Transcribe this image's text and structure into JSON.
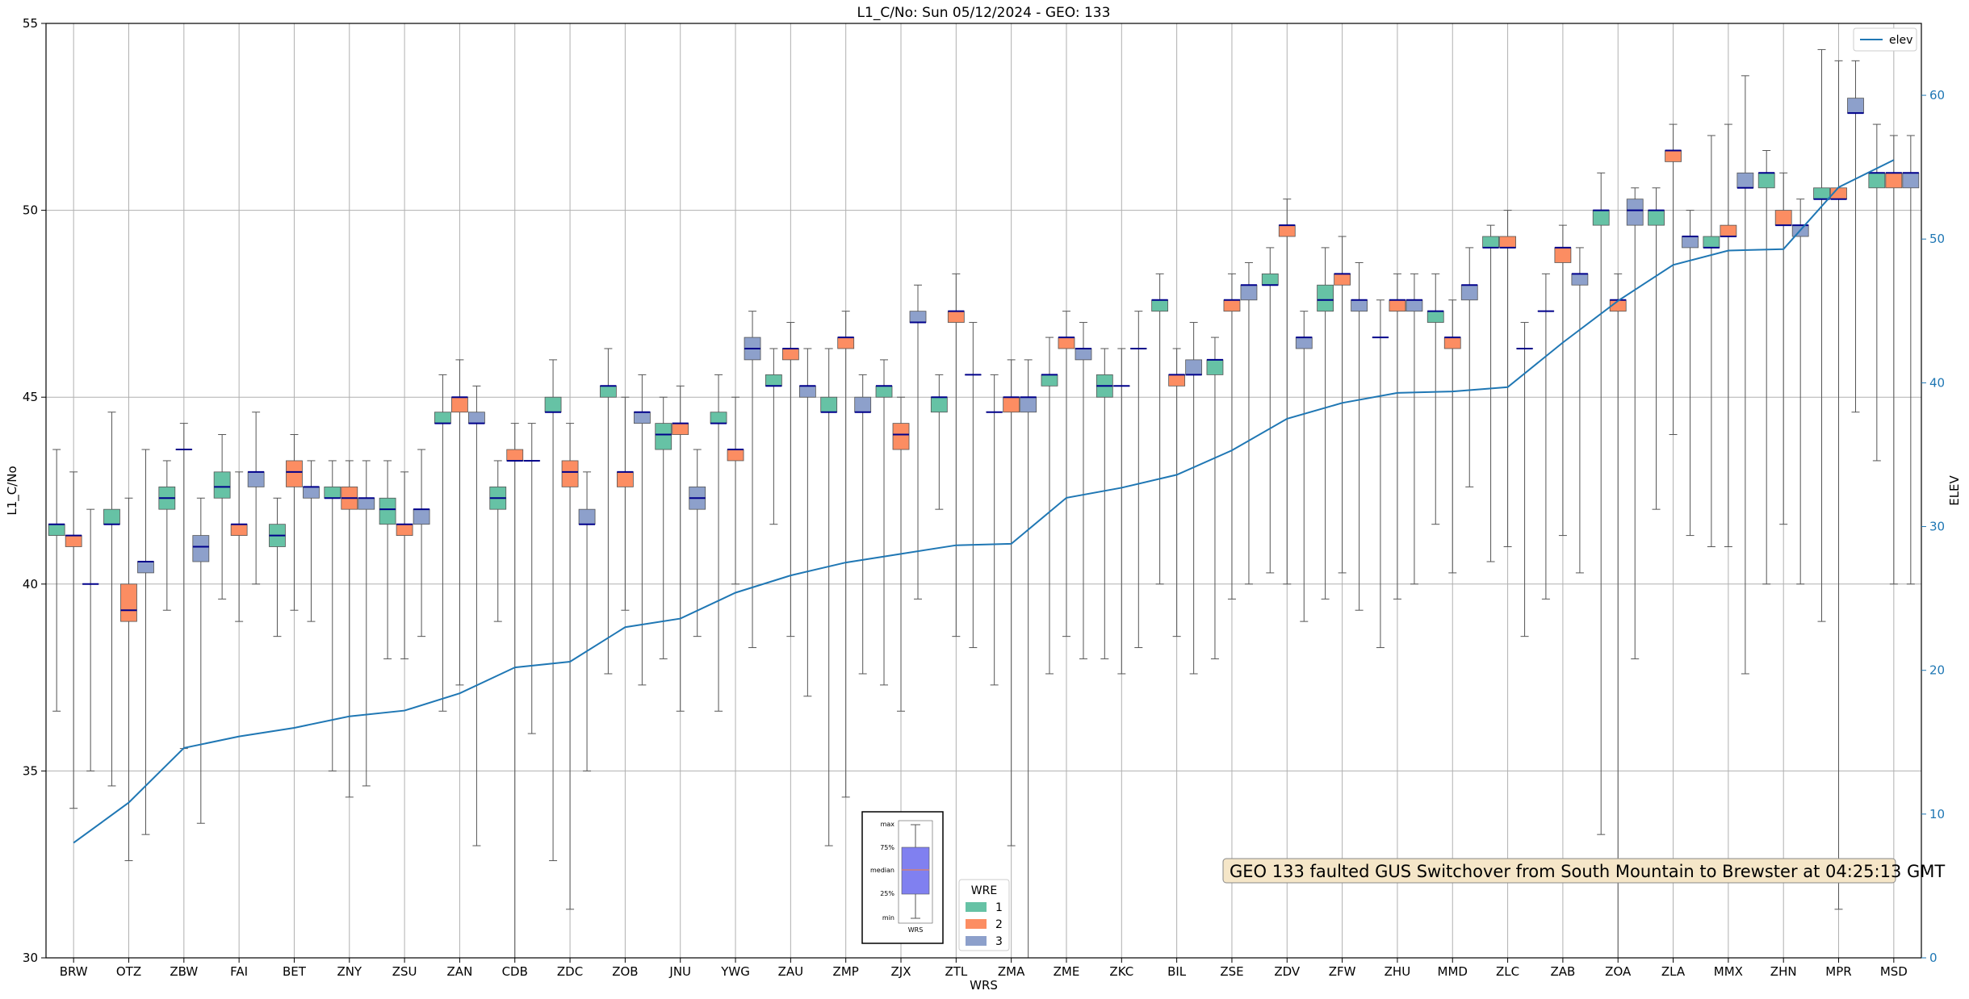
{
  "chart_data": {
    "type": "box",
    "title": "L1_C/No: Sun 05/12/2024 - GEO: 133",
    "xlabel": "WRS",
    "ylabel": "L1_C/No",
    "y2label": "ELEV",
    "ylim": [
      30,
      55
    ],
    "y2lim": [
      0,
      65
    ],
    "yticks": [
      30,
      35,
      40,
      45,
      50,
      55
    ],
    "y2ticks": [
      0,
      10,
      20,
      30,
      40,
      50,
      60
    ],
    "grid": true,
    "categories": [
      "BRW",
      "OTZ",
      "ZBW",
      "FAI",
      "BET",
      "ZNY",
      "ZSU",
      "ZAN",
      "CDB",
      "ZDC",
      "ZOB",
      "JNU",
      "YWG",
      "ZAU",
      "ZMP",
      "ZJX",
      "ZTL",
      "ZMA",
      "ZME",
      "ZKC",
      "BIL",
      "ZSE",
      "ZDV",
      "ZFW",
      "ZHU",
      "MMD",
      "ZLC",
      "ZAB",
      "ZOA",
      "ZLA",
      "MMX",
      "ZHN",
      "MPR",
      "MSD"
    ],
    "wre_colors": {
      "1": "#66c2a5",
      "2": "#fc8d62",
      "3": "#8da0cb"
    },
    "median_color": "#00008b",
    "boxes": [
      {
        "cat": "BRW",
        "wre": 1,
        "min": 36.6,
        "q1": 41.3,
        "med": 41.6,
        "q3": 41.6,
        "max": 43.6
      },
      {
        "cat": "BRW",
        "wre": 2,
        "min": 34.0,
        "q1": 41.0,
        "med": 41.3,
        "q3": 41.3,
        "max": 43.0
      },
      {
        "cat": "BRW",
        "wre": 3,
        "min": 35.0,
        "q1": 40.0,
        "med": 40.0,
        "q3": 40.0,
        "max": 42.0
      },
      {
        "cat": "OTZ",
        "wre": 1,
        "min": 34.6,
        "q1": 41.6,
        "med": 41.6,
        "q3": 42.0,
        "max": 44.6
      },
      {
        "cat": "OTZ",
        "wre": 2,
        "min": 32.6,
        "q1": 39.0,
        "med": 39.3,
        "q3": 40.0,
        "max": 42.3
      },
      {
        "cat": "OTZ",
        "wre": 3,
        "min": 33.3,
        "q1": 40.3,
        "med": 40.6,
        "q3": 40.6,
        "max": 43.6
      },
      {
        "cat": "ZBW",
        "wre": 1,
        "min": 39.3,
        "q1": 42.0,
        "med": 42.3,
        "q3": 42.6,
        "max": 43.3
      },
      {
        "cat": "ZBW",
        "wre": 2,
        "min": 35.6,
        "q1": 43.6,
        "med": 43.6,
        "q3": 43.6,
        "max": 44.3
      },
      {
        "cat": "ZBW",
        "wre": 3,
        "min": 33.6,
        "q1": 40.6,
        "med": 41.0,
        "q3": 41.3,
        "max": 42.3
      },
      {
        "cat": "FAI",
        "wre": 1,
        "min": 39.6,
        "q1": 42.3,
        "med": 42.6,
        "q3": 43.0,
        "max": 44.0
      },
      {
        "cat": "FAI",
        "wre": 2,
        "min": 39.0,
        "q1": 41.3,
        "med": 41.6,
        "q3": 41.6,
        "max": 43.0
      },
      {
        "cat": "FAI",
        "wre": 3,
        "min": 40.0,
        "q1": 42.6,
        "med": 43.0,
        "q3": 43.0,
        "max": 44.6
      },
      {
        "cat": "BET",
        "wre": 1,
        "min": 38.6,
        "q1": 41.0,
        "med": 41.3,
        "q3": 41.6,
        "max": 42.3
      },
      {
        "cat": "BET",
        "wre": 2,
        "min": 39.3,
        "q1": 42.6,
        "med": 43.0,
        "q3": 43.3,
        "max": 44.0
      },
      {
        "cat": "BET",
        "wre": 3,
        "min": 39.0,
        "q1": 42.3,
        "med": 42.6,
        "q3": 42.6,
        "max": 43.3
      },
      {
        "cat": "ZNY",
        "wre": 1,
        "min": 35.0,
        "q1": 42.3,
        "med": 42.3,
        "q3": 42.6,
        "max": 43.3
      },
      {
        "cat": "ZNY",
        "wre": 2,
        "min": 34.3,
        "q1": 42.0,
        "med": 42.3,
        "q3": 42.6,
        "max": 43.3
      },
      {
        "cat": "ZNY",
        "wre": 3,
        "min": 34.6,
        "q1": 42.0,
        "med": 42.3,
        "q3": 42.3,
        "max": 43.3
      },
      {
        "cat": "ZSU",
        "wre": 1,
        "min": 38.0,
        "q1": 41.6,
        "med": 42.0,
        "q3": 42.3,
        "max": 43.3
      },
      {
        "cat": "ZSU",
        "wre": 2,
        "min": 38.0,
        "q1": 41.3,
        "med": 41.6,
        "q3": 41.6,
        "max": 43.0
      },
      {
        "cat": "ZSU",
        "wre": 3,
        "min": 38.6,
        "q1": 41.6,
        "med": 42.0,
        "q3": 42.0,
        "max": 43.6
      },
      {
        "cat": "ZAN",
        "wre": 1,
        "min": 36.6,
        "q1": 44.3,
        "med": 44.3,
        "q3": 44.6,
        "max": 45.6
      },
      {
        "cat": "ZAN",
        "wre": 2,
        "min": 37.3,
        "q1": 44.6,
        "med": 45.0,
        "q3": 45.0,
        "max": 46.0
      },
      {
        "cat": "ZAN",
        "wre": 3,
        "min": 33.0,
        "q1": 44.3,
        "med": 44.3,
        "q3": 44.6,
        "max": 45.3
      },
      {
        "cat": "CDB",
        "wre": 1,
        "min": 39.0,
        "q1": 42.0,
        "med": 42.3,
        "q3": 42.6,
        "max": 43.3
      },
      {
        "cat": "CDB",
        "wre": 2,
        "min": 30.0,
        "q1": 43.3,
        "med": 43.3,
        "q3": 43.6,
        "max": 44.3
      },
      {
        "cat": "CDB",
        "wre": 3,
        "min": 36.0,
        "q1": 43.3,
        "med": 43.3,
        "q3": 43.3,
        "max": 44.3
      },
      {
        "cat": "ZDC",
        "wre": 1,
        "min": 32.6,
        "q1": 44.6,
        "med": 44.6,
        "q3": 45.0,
        "max": 46.0
      },
      {
        "cat": "ZDC",
        "wre": 2,
        "min": 31.3,
        "q1": 42.6,
        "med": 43.0,
        "q3": 43.3,
        "max": 44.3
      },
      {
        "cat": "ZDC",
        "wre": 3,
        "min": 35.0,
        "q1": 41.6,
        "med": 41.6,
        "q3": 42.0,
        "max": 43.0
      },
      {
        "cat": "ZOB",
        "wre": 1,
        "min": 37.6,
        "q1": 45.0,
        "med": 45.3,
        "q3": 45.3,
        "max": 46.3
      },
      {
        "cat": "ZOB",
        "wre": 2,
        "min": 39.3,
        "q1": 42.6,
        "med": 43.0,
        "q3": 43.0,
        "max": 45.0
      },
      {
        "cat": "ZOB",
        "wre": 3,
        "min": 37.3,
        "q1": 44.3,
        "med": 44.6,
        "q3": 44.6,
        "max": 45.6
      },
      {
        "cat": "JNU",
        "wre": 1,
        "min": 38.0,
        "q1": 43.6,
        "med": 44.0,
        "q3": 44.3,
        "max": 45.0
      },
      {
        "cat": "JNU",
        "wre": 2,
        "min": 36.6,
        "q1": 44.0,
        "med": 44.3,
        "q3": 44.3,
        "max": 45.3
      },
      {
        "cat": "JNU",
        "wre": 3,
        "min": 38.6,
        "q1": 42.0,
        "med": 42.3,
        "q3": 42.6,
        "max": 43.6
      },
      {
        "cat": "YWG",
        "wre": 1,
        "min": 36.6,
        "q1": 44.3,
        "med": 44.3,
        "q3": 44.6,
        "max": 45.6
      },
      {
        "cat": "YWG",
        "wre": 2,
        "min": 40.0,
        "q1": 43.3,
        "med": 43.6,
        "q3": 43.6,
        "max": 45.0
      },
      {
        "cat": "YWG",
        "wre": 3,
        "min": 38.3,
        "q1": 46.0,
        "med": 46.3,
        "q3": 46.6,
        "max": 47.3
      },
      {
        "cat": "ZAU",
        "wre": 1,
        "min": 41.6,
        "q1": 45.3,
        "med": 45.3,
        "q3": 45.6,
        "max": 46.3
      },
      {
        "cat": "ZAU",
        "wre": 2,
        "min": 38.6,
        "q1": 46.0,
        "med": 46.3,
        "q3": 46.3,
        "max": 47.0
      },
      {
        "cat": "ZAU",
        "wre": 3,
        "min": 37.0,
        "q1": 45.0,
        "med": 45.3,
        "q3": 45.3,
        "max": 46.3
      },
      {
        "cat": "ZMP",
        "wre": 1,
        "min": 33.0,
        "q1": 44.6,
        "med": 44.6,
        "q3": 45.0,
        "max": 46.3
      },
      {
        "cat": "ZMP",
        "wre": 2,
        "min": 34.3,
        "q1": 46.3,
        "med": 46.6,
        "q3": 46.6,
        "max": 47.3
      },
      {
        "cat": "ZMP",
        "wre": 3,
        "min": 37.6,
        "q1": 44.6,
        "med": 44.6,
        "q3": 45.0,
        "max": 45.6
      },
      {
        "cat": "ZJX",
        "wre": 1,
        "min": 37.3,
        "q1": 45.0,
        "med": 45.3,
        "q3": 45.3,
        "max": 46.0
      },
      {
        "cat": "ZJX",
        "wre": 2,
        "min": 36.6,
        "q1": 43.6,
        "med": 44.0,
        "q3": 44.3,
        "max": 45.0
      },
      {
        "cat": "ZJX",
        "wre": 3,
        "min": 39.6,
        "q1": 47.0,
        "med": 47.0,
        "q3": 47.3,
        "max": 48.0
      },
      {
        "cat": "ZTL",
        "wre": 1,
        "min": 42.0,
        "q1": 44.6,
        "med": 45.0,
        "q3": 45.0,
        "max": 45.6
      },
      {
        "cat": "ZTL",
        "wre": 2,
        "min": 38.6,
        "q1": 47.0,
        "med": 47.3,
        "q3": 47.3,
        "max": 48.3
      },
      {
        "cat": "ZTL",
        "wre": 3,
        "min": 38.3,
        "q1": 45.6,
        "med": 45.6,
        "q3": 45.6,
        "max": 47.0
      },
      {
        "cat": "ZMA",
        "wre": 1,
        "min": 37.3,
        "q1": 44.6,
        "med": 44.6,
        "q3": 44.6,
        "max": 45.6
      },
      {
        "cat": "ZMA",
        "wre": 2,
        "min": 33.0,
        "q1": 44.6,
        "med": 45.0,
        "q3": 45.0,
        "max": 46.0
      },
      {
        "cat": "ZMA",
        "wre": 3,
        "min": 30.0,
        "q1": 44.6,
        "med": 45.0,
        "q3": 45.0,
        "max": 46.0
      },
      {
        "cat": "ZME",
        "wre": 1,
        "min": 37.6,
        "q1": 45.3,
        "med": 45.6,
        "q3": 45.6,
        "max": 46.6
      },
      {
        "cat": "ZME",
        "wre": 2,
        "min": 38.6,
        "q1": 46.3,
        "med": 46.6,
        "q3": 46.6,
        "max": 47.3
      },
      {
        "cat": "ZME",
        "wre": 3,
        "min": 38.0,
        "q1": 46.0,
        "med": 46.3,
        "q3": 46.3,
        "max": 47.0
      },
      {
        "cat": "ZKC",
        "wre": 1,
        "min": 38.0,
        "q1": 45.0,
        "med": 45.3,
        "q3": 45.6,
        "max": 46.3
      },
      {
        "cat": "ZKC",
        "wre": 2,
        "min": 37.6,
        "q1": 45.3,
        "med": 45.3,
        "q3": 45.3,
        "max": 46.3
      },
      {
        "cat": "ZKC",
        "wre": 3,
        "min": 38.3,
        "q1": 46.3,
        "med": 46.3,
        "q3": 46.3,
        "max": 47.3
      },
      {
        "cat": "BIL",
        "wre": 1,
        "min": 40.0,
        "q1": 47.3,
        "med": 47.6,
        "q3": 47.6,
        "max": 48.3
      },
      {
        "cat": "BIL",
        "wre": 2,
        "min": 38.6,
        "q1": 45.3,
        "med": 45.6,
        "q3": 45.6,
        "max": 46.3
      },
      {
        "cat": "BIL",
        "wre": 3,
        "min": 37.6,
        "q1": 45.6,
        "med": 45.6,
        "q3": 46.0,
        "max": 47.0
      },
      {
        "cat": "ZSE",
        "wre": 1,
        "min": 38.0,
        "q1": 45.6,
        "med": 46.0,
        "q3": 46.0,
        "max": 46.6
      },
      {
        "cat": "ZSE",
        "wre": 2,
        "min": 39.6,
        "q1": 47.3,
        "med": 47.6,
        "q3": 47.6,
        "max": 48.3
      },
      {
        "cat": "ZSE",
        "wre": 3,
        "min": 40.0,
        "q1": 47.6,
        "med": 48.0,
        "q3": 48.0,
        "max": 48.6
      },
      {
        "cat": "ZDV",
        "wre": 1,
        "min": 40.3,
        "q1": 48.0,
        "med": 48.0,
        "q3": 48.3,
        "max": 49.0
      },
      {
        "cat": "ZDV",
        "wre": 2,
        "min": 40.0,
        "q1": 49.3,
        "med": 49.6,
        "q3": 49.6,
        "max": 50.3
      },
      {
        "cat": "ZDV",
        "wre": 3,
        "min": 39.0,
        "q1": 46.3,
        "med": 46.6,
        "q3": 46.6,
        "max": 47.3
      },
      {
        "cat": "ZFW",
        "wre": 1,
        "min": 39.6,
        "q1": 47.3,
        "med": 47.6,
        "q3": 48.0,
        "max": 49.0
      },
      {
        "cat": "ZFW",
        "wre": 2,
        "min": 40.3,
        "q1": 48.0,
        "med": 48.3,
        "q3": 48.3,
        "max": 49.3
      },
      {
        "cat": "ZFW",
        "wre": 3,
        "min": 39.3,
        "q1": 47.3,
        "med": 47.6,
        "q3": 47.6,
        "max": 48.6
      },
      {
        "cat": "ZHU",
        "wre": 1,
        "min": 38.3,
        "q1": 46.6,
        "med": 46.6,
        "q3": 46.6,
        "max": 47.6
      },
      {
        "cat": "ZHU",
        "wre": 2,
        "min": 39.6,
        "q1": 47.3,
        "med": 47.6,
        "q3": 47.6,
        "max": 48.3
      },
      {
        "cat": "ZHU",
        "wre": 3,
        "min": 40.0,
        "q1": 47.3,
        "med": 47.6,
        "q3": 47.6,
        "max": 48.3
      },
      {
        "cat": "MMD",
        "wre": 1,
        "min": 41.6,
        "q1": 47.0,
        "med": 47.3,
        "q3": 47.3,
        "max": 48.3
      },
      {
        "cat": "MMD",
        "wre": 2,
        "min": 40.3,
        "q1": 46.3,
        "med": 46.6,
        "q3": 46.6,
        "max": 47.6
      },
      {
        "cat": "MMD",
        "wre": 3,
        "min": 42.6,
        "q1": 47.6,
        "med": 48.0,
        "q3": 48.0,
        "max": 49.0
      },
      {
        "cat": "ZLC",
        "wre": 1,
        "min": 40.6,
        "q1": 49.0,
        "med": 49.0,
        "q3": 49.3,
        "max": 49.6
      },
      {
        "cat": "ZLC",
        "wre": 2,
        "min": 41.0,
        "q1": 49.0,
        "med": 49.0,
        "q3": 49.3,
        "max": 50.0
      },
      {
        "cat": "ZLC",
        "wre": 3,
        "min": 38.6,
        "q1": 46.3,
        "med": 46.3,
        "q3": 46.3,
        "max": 47.0
      },
      {
        "cat": "ZAB",
        "wre": 1,
        "min": 39.6,
        "q1": 47.3,
        "med": 47.3,
        "q3": 47.3,
        "max": 48.3
      },
      {
        "cat": "ZAB",
        "wre": 2,
        "min": 41.3,
        "q1": 48.6,
        "med": 49.0,
        "q3": 49.0,
        "max": 49.6
      },
      {
        "cat": "ZAB",
        "wre": 3,
        "min": 40.3,
        "q1": 48.0,
        "med": 48.3,
        "q3": 48.3,
        "max": 49.0
      },
      {
        "cat": "ZOA",
        "wre": 1,
        "min": 33.3,
        "q1": 49.6,
        "med": 50.0,
        "q3": 50.0,
        "max": 51.0
      },
      {
        "cat": "ZOA",
        "wre": 2,
        "min": 30.0,
        "q1": 47.3,
        "med": 47.6,
        "q3": 47.6,
        "max": 48.3
      },
      {
        "cat": "ZOA",
        "wre": 3,
        "min": 38.0,
        "q1": 49.6,
        "med": 50.0,
        "q3": 50.3,
        "max": 50.6
      },
      {
        "cat": "ZLA",
        "wre": 1,
        "min": 42.0,
        "q1": 49.6,
        "med": 50.0,
        "q3": 50.0,
        "max": 50.6
      },
      {
        "cat": "ZLA",
        "wre": 2,
        "min": 44.0,
        "q1": 51.3,
        "med": 51.6,
        "q3": 51.6,
        "max": 52.3
      },
      {
        "cat": "ZLA",
        "wre": 3,
        "min": 41.3,
        "q1": 49.0,
        "med": 49.3,
        "q3": 49.3,
        "max": 50.0
      },
      {
        "cat": "MMX",
        "wre": 1,
        "min": 41.0,
        "q1": 49.0,
        "med": 49.0,
        "q3": 49.3,
        "max": 52.0
      },
      {
        "cat": "MMX",
        "wre": 2,
        "min": 41.0,
        "q1": 49.3,
        "med": 49.3,
        "q3": 49.6,
        "max": 52.3
      },
      {
        "cat": "MMX",
        "wre": 3,
        "min": 37.6,
        "q1": 50.6,
        "med": 50.6,
        "q3": 51.0,
        "max": 53.6
      },
      {
        "cat": "ZHN",
        "wre": 1,
        "min": 40.0,
        "q1": 50.6,
        "med": 51.0,
        "q3": 51.0,
        "max": 51.6
      },
      {
        "cat": "ZHN",
        "wre": 2,
        "min": 41.6,
        "q1": 49.6,
        "med": 49.6,
        "q3": 50.0,
        "max": 51.0
      },
      {
        "cat": "ZHN",
        "wre": 3,
        "min": 40.0,
        "q1": 49.3,
        "med": 49.6,
        "q3": 49.6,
        "max": 50.3
      },
      {
        "cat": "MPR",
        "wre": 1,
        "min": 39.0,
        "q1": 50.3,
        "med": 50.3,
        "q3": 50.6,
        "max": 54.3
      },
      {
        "cat": "MPR",
        "wre": 2,
        "min": 31.3,
        "q1": 50.3,
        "med": 50.3,
        "q3": 50.6,
        "max": 54.0
      },
      {
        "cat": "MPR",
        "wre": 3,
        "min": 44.6,
        "q1": 52.6,
        "med": 52.6,
        "q3": 53.0,
        "max": 54.0
      },
      {
        "cat": "MSD",
        "wre": 1,
        "min": 43.3,
        "q1": 50.6,
        "med": 51.0,
        "q3": 51.0,
        "max": 52.3
      },
      {
        "cat": "MSD",
        "wre": 2,
        "min": 40.0,
        "q1": 50.6,
        "med": 51.0,
        "q3": 51.0,
        "max": 52.0
      },
      {
        "cat": "MSD",
        "wre": 3,
        "min": 40.0,
        "q1": 50.6,
        "med": 51.0,
        "q3": 51.0,
        "max": 52.0
      }
    ],
    "elev_series": {
      "name": "elev",
      "color": "#1f77b4",
      "values": [
        8,
        10.8,
        14.6,
        15.4,
        16.0,
        16.8,
        17.2,
        18.4,
        20.2,
        20.6,
        23.0,
        23.6,
        25.4,
        26.6,
        27.5,
        28.1,
        28.7,
        28.8,
        32.0,
        32.7,
        33.6,
        35.3,
        37.5,
        38.6,
        39.3,
        39.4,
        39.7,
        42.8,
        45.7,
        48.2,
        49.2,
        49.3,
        53.6,
        55.5
      ]
    },
    "legend_elev": {
      "label": "elev",
      "placement": "top-right"
    },
    "legend_wre": {
      "title": "WRE",
      "entries": [
        "1",
        "2",
        "3"
      ],
      "placement": "bottom-center"
    },
    "annotation": "GEO 133 faulted GUS Switchover from South Mountain to Brewster at 04:25:13 GMT",
    "key_box": {
      "labels": [
        "max",
        "75%",
        "median",
        "25%",
        "min"
      ],
      "xlabel": "WRS",
      "fill": "#8080f0",
      "median_color": "#e08060"
    }
  }
}
